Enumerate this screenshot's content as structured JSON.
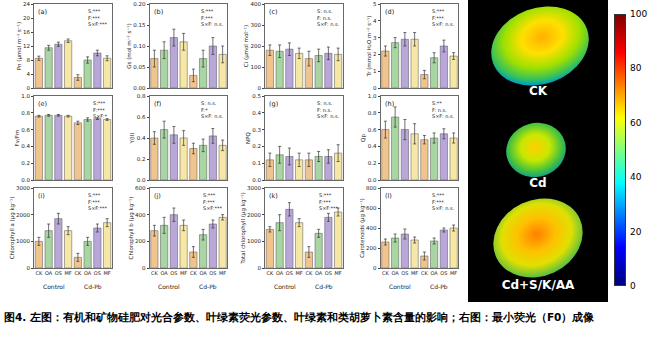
{
  "chart_data": [
    {
      "type": "bar",
      "label": "(a)",
      "y_label": "Pn (μmol m⁻² s⁻¹)",
      "annotations": [
        "S:***",
        "F:***",
        "S×F:***"
      ],
      "categories": [
        "CK",
        "OA",
        "OS",
        "MF",
        "CK",
        "OA",
        "OS",
        "MF"
      ],
      "values": [
        8.5,
        11.5,
        12.5,
        13.5,
        3,
        8,
        10,
        8.5
      ],
      "errors": [
        0.6,
        0.7,
        0.6,
        0.5,
        0.8,
        0.9,
        0.8,
        0.7
      ],
      "colors": [
        "#F2C48D",
        "#A8D5A2",
        "#B9A7D9",
        "#F6E7A6",
        "#F2C48D",
        "#A8D5A2",
        "#B9A7D9",
        "#F6E7A6"
      ],
      "ylim": [
        0,
        24
      ],
      "yticks": [
        0,
        4,
        8,
        12,
        16,
        20,
        24
      ],
      "grid": false,
      "tick_labels": "y"
    },
    {
      "type": "bar",
      "label": "(b)",
      "y_label": "Gs (mol m⁻² s⁻¹)",
      "annotations": [
        "S:***",
        "F:***",
        "S×F: n.s."
      ],
      "categories": [
        "CK",
        "OA",
        "OS",
        "MF",
        "CK",
        "OA",
        "OS",
        "MF"
      ],
      "values": [
        0.07,
        0.09,
        0.12,
        0.11,
        0.03,
        0.07,
        0.1,
        0.08
      ],
      "errors": [
        0.02,
        0.02,
        0.02,
        0.02,
        0.015,
        0.02,
        0.02,
        0.02
      ],
      "colors": [
        "#F2C48D",
        "#A8D5A2",
        "#B9A7D9",
        "#F6E7A6",
        "#F2C48D",
        "#A8D5A2",
        "#B9A7D9",
        "#F6E7A6"
      ],
      "ylim": [
        0,
        0.2
      ],
      "yticks": [
        {
          "value": 0,
          "label": "0.00"
        },
        0.05,
        {
          "value": 0.1,
          "label": "0.10"
        },
        0.15,
        {
          "value": 0.2,
          "label": "0.20"
        }
      ],
      "grid": false,
      "tick_labels": "y"
    },
    {
      "type": "bar",
      "label": "(c)",
      "y_label": "Ci (μmol mol⁻¹)",
      "annotations": [
        "S: n.s.",
        "F: n.s.",
        "S×F: n.s."
      ],
      "categories": [
        "CK",
        "OA",
        "OS",
        "MF",
        "CK",
        "OA",
        "OS",
        "MF"
      ],
      "values": [
        180,
        175,
        185,
        165,
        140,
        155,
        165,
        160
      ],
      "errors": [
        25,
        30,
        30,
        25,
        35,
        30,
        30,
        30
      ],
      "colors": [
        "#F2C48D",
        "#A8D5A2",
        "#B9A7D9",
        "#F6E7A6",
        "#F2C48D",
        "#A8D5A2",
        "#B9A7D9",
        "#F6E7A6"
      ],
      "ylim": [
        0,
        400
      ],
      "yticks": [
        0,
        100,
        200,
        300,
        400
      ],
      "grid": false,
      "tick_labels": "y"
    },
    {
      "type": "bar",
      "label": "(d)",
      "y_label": "Tr (mmol H₂O m⁻² s⁻¹)",
      "annotations": [
        "S:***",
        "F:***",
        "S×F: n.s."
      ],
      "categories": [
        "CK",
        "OA",
        "OS",
        "MF",
        "CK",
        "OA",
        "OS",
        "MF"
      ],
      "values": [
        2.2,
        2.7,
        2.9,
        2.9,
        0.8,
        1.8,
        2.5,
        1.9
      ],
      "errors": [
        0.3,
        0.3,
        0.4,
        0.4,
        0.25,
        0.3,
        0.35,
        0.2
      ],
      "colors": [
        "#F2C48D",
        "#A8D5A2",
        "#B9A7D9",
        "#F6E7A6",
        "#F2C48D",
        "#A8D5A2",
        "#B9A7D9",
        "#F6E7A6"
      ],
      "ylim": [
        0,
        5
      ],
      "yticks": [
        0,
        1,
        2,
        3,
        4,
        5
      ],
      "grid": false,
      "tick_labels": "y"
    },
    {
      "type": "bar",
      "label": "(e)",
      "y_label": "Fv/Fm",
      "annotations": [
        "S:***",
        "F:***",
        "S×F:*"
      ],
      "categories": [
        "CK",
        "OA",
        "OS",
        "MF",
        "CK",
        "OA",
        "OS",
        "MF"
      ],
      "values": [
        0.76,
        0.77,
        0.77,
        0.76,
        0.68,
        0.72,
        0.73,
        0.72
      ],
      "errors": [
        0.01,
        0.01,
        0.01,
        0.01,
        0.02,
        0.02,
        0.01,
        0.01
      ],
      "colors": [
        "#F2C48D",
        "#A8D5A2",
        "#B9A7D9",
        "#F6E7A6",
        "#F2C48D",
        "#A8D5A2",
        "#B9A7D9",
        "#F6E7A6"
      ],
      "ylim": [
        0,
        1
      ],
      "yticks": [
        {
          "value": 0,
          "label": "0.0"
        },
        0.2,
        0.4,
        0.6,
        0.8,
        {
          "value": 1,
          "label": "1.0"
        }
      ],
      "grid": false,
      "tick_labels": "y"
    },
    {
      "type": "bar",
      "label": "(f)",
      "y_label": "Y(II)",
      "annotations": [
        "S: n.s.",
        "F:*",
        "S×F: n.s."
      ],
      "categories": [
        "CK",
        "OA",
        "OS",
        "MF",
        "CK",
        "OA",
        "OS",
        "MF"
      ],
      "values": [
        0.4,
        0.48,
        0.43,
        0.4,
        0.3,
        0.33,
        0.42,
        0.33
      ],
      "errors": [
        0.06,
        0.08,
        0.08,
        0.07,
        0.05,
        0.06,
        0.07,
        0.05
      ],
      "colors": [
        "#F2C48D",
        "#A8D5A2",
        "#B9A7D9",
        "#F6E7A6",
        "#F2C48D",
        "#A8D5A2",
        "#B9A7D9",
        "#F6E7A6"
      ],
      "ylim": [
        0,
        0.8
      ],
      "yticks": [
        {
          "value": 0,
          "label": "0.0"
        },
        0.2,
        0.4,
        0.6,
        0.8
      ],
      "grid": false,
      "tick_labels": "y"
    },
    {
      "type": "bar",
      "label": "(g)",
      "y_label": "NPQ",
      "annotations": [
        "S: n.s.",
        "F: n.s.",
        "S×F: n.s."
      ],
      "categories": [
        "CK",
        "OA",
        "OS",
        "MF",
        "CK",
        "OA",
        "OS",
        "MF"
      ],
      "values": [
        0.12,
        0.15,
        0.14,
        0.12,
        0.12,
        0.14,
        0.14,
        0.16
      ],
      "errors": [
        0.04,
        0.05,
        0.05,
        0.04,
        0.04,
        0.03,
        0.04,
        0.05
      ],
      "colors": [
        "#F2C48D",
        "#A8D5A2",
        "#B9A7D9",
        "#F6E7A6",
        "#F2C48D",
        "#A8D5A2",
        "#B9A7D9",
        "#F6E7A6"
      ],
      "ylim": [
        0,
        0.5
      ],
      "yticks": [
        {
          "value": 0,
          "label": "0.0"
        },
        0.1,
        0.2,
        0.3,
        0.4,
        0.5
      ],
      "grid": false,
      "tick_labels": "y"
    },
    {
      "type": "bar",
      "label": "(h)",
      "y_label": "Qp",
      "annotations": [
        "S:**",
        "F: n.s.",
        "S×F: n.s."
      ],
      "categories": [
        "CK",
        "OA",
        "OS",
        "MF",
        "CK",
        "OA",
        "OS",
        "MF"
      ],
      "values": [
        0.6,
        0.75,
        0.6,
        0.55,
        0.48,
        0.5,
        0.55,
        0.5
      ],
      "errors": [
        0.1,
        0.12,
        0.12,
        0.12,
        0.05,
        0.06,
        0.06,
        0.06
      ],
      "colors": [
        "#F2C48D",
        "#A8D5A2",
        "#B9A7D9",
        "#F6E7A6",
        "#F2C48D",
        "#A8D5A2",
        "#B9A7D9",
        "#F6E7A6"
      ],
      "ylim": [
        0,
        1
      ],
      "yticks": [
        {
          "value": 0,
          "label": "0.0"
        },
        0.2,
        0.4,
        0.6,
        0.8,
        {
          "value": 1,
          "label": "1.0"
        }
      ],
      "grid": false,
      "tick_labels": "y"
    },
    {
      "type": "bar",
      "label": "(i)",
      "y_label": "Chlorophyll a (μg kg⁻¹)",
      "annotations": [
        "S:***",
        "F:***",
        "S×F:***"
      ],
      "categories": [
        "CK",
        "OA",
        "OS",
        "MF",
        "CK",
        "OA",
        "OS",
        "MF"
      ],
      "group_labels": [
        "Control",
        "Cd-Pb"
      ],
      "values": [
        1000,
        1400,
        1850,
        1400,
        400,
        1000,
        1500,
        1700
      ],
      "errors": [
        150,
        250,
        200,
        150,
        150,
        150,
        150,
        150
      ],
      "colors": [
        "#F2C48D",
        "#A8D5A2",
        "#B9A7D9",
        "#F6E7A6",
        "#F2C48D",
        "#A8D5A2",
        "#B9A7D9",
        "#F6E7A6"
      ],
      "ylim": [
        0,
        3000
      ],
      "yticks": [
        0,
        1000,
        2000,
        3000
      ],
      "grid": false
    },
    {
      "type": "bar",
      "label": "(j)",
      "y_label": "Chlorophyll b (μg kg⁻¹)",
      "annotations": [
        "S:***",
        "F:***",
        "S×F:***"
      ],
      "categories": [
        "CK",
        "OA",
        "OS",
        "MF",
        "CK",
        "OA",
        "OS",
        "MF"
      ],
      "group_labels": [
        "Control",
        "Cd-Pb"
      ],
      "values": [
        280,
        320,
        400,
        320,
        120,
        250,
        330,
        380
      ],
      "errors": [
        40,
        60,
        50,
        40,
        40,
        40,
        30,
        20
      ],
      "colors": [
        "#F2C48D",
        "#A8D5A2",
        "#B9A7D9",
        "#F6E7A6",
        "#F2C48D",
        "#A8D5A2",
        "#B9A7D9",
        "#F6E7A6"
      ],
      "ylim": [
        0,
        600
      ],
      "yticks": [
        0,
        200,
        400,
        600
      ],
      "grid": false
    },
    {
      "type": "bar",
      "label": "(k)",
      "y_label": "Total chlorophyll (μg kg⁻¹)",
      "annotations": [
        "S:***",
        "F:***",
        "S×F:***"
      ],
      "categories": [
        "CK",
        "OA",
        "OS",
        "MF",
        "CK",
        "OA",
        "OS",
        "MF"
      ],
      "group_labels": [
        "Control",
        "Cd-Pb"
      ],
      "values": [
        1450,
        1700,
        2200,
        1700,
        600,
        1300,
        1900,
        2100
      ],
      "errors": [
        100,
        300,
        250,
        150,
        200,
        150,
        150,
        150
      ],
      "colors": [
        "#F2C48D",
        "#A8D5A2",
        "#B9A7D9",
        "#F6E7A6",
        "#F2C48D",
        "#A8D5A2",
        "#B9A7D9",
        "#F6E7A6"
      ],
      "ylim": [
        0,
        3000
      ],
      "yticks": [
        0,
        1000,
        2000,
        3000
      ],
      "grid": false
    },
    {
      "type": "bar",
      "label": "(l)",
      "y_label": "Carotenoids (μg kg⁻¹)",
      "annotations": [
        "S:***",
        "F:***",
        "S×F: n.s."
      ],
      "categories": [
        "CK",
        "OA",
        "OS",
        "MF",
        "CK",
        "OA",
        "OS",
        "MF"
      ],
      "group_labels": [
        "Control",
        "Cd-Pb"
      ],
      "values": [
        260,
        300,
        340,
        280,
        120,
        270,
        380,
        400
      ],
      "errors": [
        30,
        40,
        50,
        30,
        40,
        30,
        20,
        30
      ],
      "colors": [
        "#F2C48D",
        "#A8D5A2",
        "#B9A7D9",
        "#F6E7A6",
        "#F2C48D",
        "#A8D5A2",
        "#B9A7D9",
        "#F6E7A6"
      ],
      "ylim": [
        0,
        800
      ],
      "yticks": [
        0,
        200,
        400,
        600,
        800
      ],
      "grid": false
    }
  ],
  "image": {
    "leaf_labels": [
      "CK",
      "Cd",
      "Cd+S/K/AA"
    ],
    "colorbar_range": [
      0,
      100
    ],
    "colorbar_ticks": [
      0,
      20,
      40,
      60,
      80,
      100
    ]
  },
  "caption": "图4. 左图：有机和矿物硅肥对光合参数、叶绿素荧光参数、叶绿素和类胡萝卜素含量的影响；右图：最小荧光（F0）成像"
}
